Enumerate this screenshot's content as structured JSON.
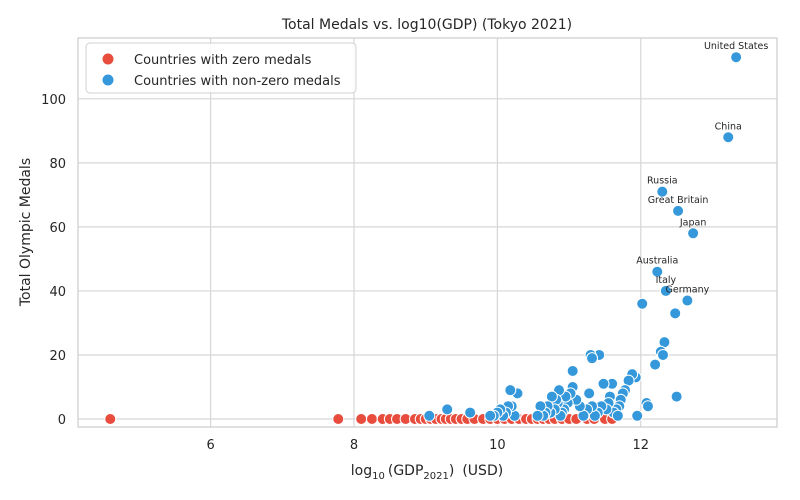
{
  "chart_data": {
    "type": "scatter",
    "title": "Total Medals vs. log10(GDP)  (Tokyo 2021)",
    "xlabel": {
      "prefix": "log",
      "prefix_sub": "10",
      "open": "(GDP",
      "sub": "2021",
      "close": ")",
      "unit": "(USD)"
    },
    "ylabel": "Total Olympic Medals",
    "xlim": [
      4.15,
      13.9
    ],
    "ylim": [
      -2.5,
      119
    ],
    "xticks": [
      6,
      8,
      10,
      12
    ],
    "yticks": [
      0,
      20,
      40,
      60,
      80,
      100
    ],
    "grid": true,
    "legend_position": "top-left",
    "series": [
      {
        "name": "Countries with zero medals",
        "color": "#e74c3c",
        "points": [
          [
            4.6,
            0
          ],
          [
            7.78,
            0
          ],
          [
            8.1,
            0
          ],
          [
            8.25,
            0
          ],
          [
            8.4,
            0
          ],
          [
            8.5,
            0
          ],
          [
            8.6,
            0
          ],
          [
            8.72,
            0
          ],
          [
            8.85,
            0
          ],
          [
            8.93,
            0
          ],
          [
            9.0,
            0
          ],
          [
            9.07,
            0
          ],
          [
            9.14,
            0
          ],
          [
            9.22,
            0
          ],
          [
            9.28,
            0
          ],
          [
            9.35,
            0
          ],
          [
            9.42,
            0
          ],
          [
            9.5,
            0
          ],
          [
            9.58,
            0
          ],
          [
            9.68,
            0
          ],
          [
            9.8,
            0
          ],
          [
            9.9,
            0
          ],
          [
            10.0,
            0
          ],
          [
            10.1,
            0
          ],
          [
            10.2,
            0
          ],
          [
            10.3,
            0
          ],
          [
            10.4,
            0
          ],
          [
            10.48,
            0
          ],
          [
            10.56,
            0
          ],
          [
            10.64,
            0
          ],
          [
            10.72,
            0
          ],
          [
            10.8,
            0
          ],
          [
            10.9,
            0
          ],
          [
            11.0,
            0
          ],
          [
            11.1,
            0
          ],
          [
            11.25,
            0
          ],
          [
            11.35,
            0
          ],
          [
            11.5,
            0
          ],
          [
            11.6,
            0
          ]
        ]
      },
      {
        "name": "Countries with non-zero medals",
        "color": "#3498db",
        "points": [
          [
            13.33,
            113
          ],
          [
            13.22,
            88
          ],
          [
            12.3,
            71
          ],
          [
            12.52,
            65
          ],
          [
            12.73,
            58
          ],
          [
            12.23,
            46
          ],
          [
            12.35,
            40
          ],
          [
            12.65,
            37
          ],
          [
            12.02,
            36
          ],
          [
            12.48,
            33
          ],
          [
            12.33,
            24
          ],
          [
            12.28,
            21
          ],
          [
            12.31,
            20
          ],
          [
            12.2,
            17
          ],
          [
            12.5,
            7
          ],
          [
            12.08,
            5
          ],
          [
            12.1,
            4
          ],
          [
            11.95,
            1
          ],
          [
            11.93,
            13
          ],
          [
            11.88,
            14
          ],
          [
            11.83,
            12
          ],
          [
            11.78,
            9
          ],
          [
            11.75,
            8
          ],
          [
            11.72,
            6
          ],
          [
            11.7,
            4
          ],
          [
            11.66,
            3
          ],
          [
            11.62,
            2
          ],
          [
            11.68,
            1
          ],
          [
            11.6,
            11
          ],
          [
            11.57,
            7
          ],
          [
            11.55,
            5
          ],
          [
            11.52,
            3
          ],
          [
            11.48,
            11
          ],
          [
            11.45,
            4
          ],
          [
            11.42,
            20
          ],
          [
            11.4,
            2
          ],
          [
            11.36,
            1
          ],
          [
            11.32,
            4
          ],
          [
            11.3,
            20
          ],
          [
            11.32,
            19
          ],
          [
            11.28,
            8
          ],
          [
            11.25,
            3
          ],
          [
            11.2,
            1
          ],
          [
            11.15,
            4
          ],
          [
            11.1,
            6
          ],
          [
            11.05,
            15
          ],
          [
            11.05,
            10
          ],
          [
            11.02,
            8
          ],
          [
            10.98,
            5
          ],
          [
            10.95,
            7
          ],
          [
            10.93,
            3
          ],
          [
            10.9,
            2
          ],
          [
            10.88,
            1
          ],
          [
            10.86,
            9
          ],
          [
            10.84,
            5
          ],
          [
            10.82,
            6
          ],
          [
            10.8,
            3
          ],
          [
            10.76,
            7
          ],
          [
            10.74,
            2
          ],
          [
            10.7,
            4
          ],
          [
            10.67,
            2
          ],
          [
            10.64,
            1
          ],
          [
            10.6,
            4
          ],
          [
            10.56,
            1
          ],
          [
            10.28,
            8
          ],
          [
            10.24,
            1
          ],
          [
            10.2,
            4
          ],
          [
            10.18,
            9
          ],
          [
            10.15,
            4
          ],
          [
            10.12,
            2
          ],
          [
            10.08,
            1
          ],
          [
            10.04,
            3
          ],
          [
            10.0,
            2
          ],
          [
            9.95,
            1
          ],
          [
            9.9,
            1
          ],
          [
            9.62,
            2
          ],
          [
            9.3,
            3
          ],
          [
            9.05,
            1
          ]
        ]
      }
    ],
    "annotations": [
      {
        "text": "United States",
        "x": 13.33,
        "y": 113
      },
      {
        "text": "China",
        "x": 13.22,
        "y": 88
      },
      {
        "text": "Russia",
        "x": 12.3,
        "y": 71
      },
      {
        "text": "Great Britain",
        "x": 12.52,
        "y": 65
      },
      {
        "text": "Japan",
        "x": 12.73,
        "y": 58
      },
      {
        "text": "Australia",
        "x": 12.23,
        "y": 46
      },
      {
        "text": "Italy",
        "x": 12.35,
        "y": 40
      },
      {
        "text": "Germany",
        "x": 12.65,
        "y": 37
      }
    ]
  }
}
